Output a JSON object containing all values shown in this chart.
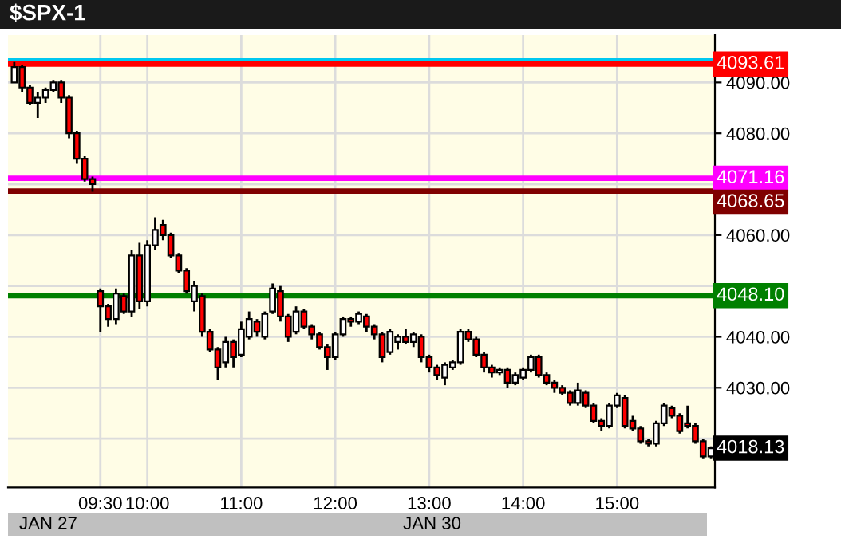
{
  "chart_data": {
    "type": "candlestick",
    "title": "$SPX-1",
    "categories": [
      null,
      null,
      null,
      null,
      null,
      null,
      null,
      null,
      null,
      null,
      null,
      "09:30",
      null,
      null,
      null,
      null,
      null,
      "10:00",
      null,
      null,
      null,
      null,
      null,
      null,
      null,
      null,
      null,
      null,
      null,
      "11:00",
      null,
      null,
      null,
      null,
      null,
      null,
      null,
      null,
      null,
      null,
      null,
      "12:00",
      null,
      null,
      null,
      null,
      null,
      null,
      null,
      null,
      null,
      null,
      null,
      "13:00",
      null,
      null,
      null,
      null,
      null,
      null,
      null,
      null,
      null,
      null,
      null,
      "14:00",
      null,
      null,
      null,
      null,
      null,
      null,
      null,
      null,
      null,
      null,
      null,
      "15:00",
      null,
      null,
      null,
      null,
      null,
      null,
      null,
      null,
      null,
      null,
      null,
      null
    ],
    "ohlc": [
      [
        4090,
        4094,
        4090,
        4093
      ],
      [
        4093,
        4093.5,
        4088,
        4089
      ],
      [
        4089,
        4089.5,
        4085.5,
        4086
      ],
      [
        4086,
        4088,
        4083,
        4087
      ],
      [
        4087,
        4089,
        4086,
        4088.5
      ],
      [
        4088.5,
        4090.5,
        4088,
        4090
      ],
      [
        4090,
        4090.5,
        4086,
        4087
      ],
      [
        4087,
        4087.5,
        4079,
        4080
      ],
      [
        4080,
        4080.5,
        4074,
        4075
      ],
      [
        4075,
        4075.5,
        4070.5,
        4071
      ],
      [
        4071,
        4071.5,
        4068.5,
        4070
      ],
      [
        4049,
        4049.5,
        4041,
        4046
      ],
      [
        4046,
        4046.5,
        4042,
        4043.5
      ],
      [
        4043.5,
        4049.5,
        4042.5,
        4048.5
      ],
      [
        4048,
        4048.5,
        4044.5,
        4045
      ],
      [
        4045,
        4057,
        4044,
        4056
      ],
      [
        4056,
        4058.5,
        4045.5,
        4047
      ],
      [
        4047,
        4059,
        4046,
        4058
      ],
      [
        4058,
        4063.5,
        4057,
        4061
      ],
      [
        4062,
        4063,
        4059,
        4060
      ],
      [
        4060,
        4060.5,
        4055.5,
        4056
      ],
      [
        4056,
        4056.5,
        4052.5,
        4053
      ],
      [
        4053,
        4053.5,
        4048.5,
        4049
      ],
      [
        4047,
        4051,
        4045,
        4050
      ],
      [
        4048,
        4048.5,
        4040,
        4041
      ],
      [
        4041,
        4041.5,
        4037,
        4037.5
      ],
      [
        4037.5,
        4038,
        4031.5,
        4034
      ],
      [
        4035,
        4040,
        4034,
        4039
      ],
      [
        4039,
        4039.5,
        4034,
        4036
      ],
      [
        4036.5,
        4043,
        4036,
        4041.5
      ],
      [
        4040,
        4045,
        4039.5,
        4043.5
      ],
      [
        4043,
        4043.5,
        4040,
        4041
      ],
      [
        4040,
        4045,
        4039.5,
        4044.5
      ],
      [
        4045,
        4050.5,
        4044.5,
        4049.5
      ],
      [
        4049,
        4050,
        4043,
        4044
      ],
      [
        4044,
        4044.5,
        4039,
        4040
      ],
      [
        4041,
        4046,
        4040.5,
        4045
      ],
      [
        4045,
        4045.5,
        4041.5,
        4042
      ],
      [
        4042,
        4042.5,
        4039.5,
        4040.5
      ],
      [
        4040.5,
        4041,
        4037.5,
        4038
      ],
      [
        4038,
        4038.5,
        4033.5,
        4036
      ],
      [
        4036,
        4041,
        4035.5,
        4040.5
      ],
      [
        4040.5,
        4044,
        4040,
        4043.5
      ],
      [
        4043.5,
        4044,
        4042,
        4043
      ],
      [
        4043,
        4045,
        4042.5,
        4044.5
      ],
      [
        4044,
        4044.5,
        4041,
        4042
      ],
      [
        4042,
        4042.5,
        4039.5,
        4040.5
      ],
      [
        4040.5,
        4041,
        4035,
        4036
      ],
      [
        4037,
        4041.5,
        4036.5,
        4041
      ],
      [
        4039,
        4040.5,
        4037.5,
        4040
      ],
      [
        4040,
        4041.5,
        4038.5,
        4039
      ],
      [
        4039,
        4041,
        4038,
        4040.5
      ],
      [
        4040,
        4040.5,
        4035,
        4036
      ],
      [
        4036,
        4036.5,
        4033,
        4034
      ],
      [
        4034,
        4034.5,
        4031.5,
        4032.5
      ],
      [
        4032,
        4035,
        4030.5,
        4034.5
      ],
      [
        4034,
        4035.5,
        4033.5,
        4035
      ],
      [
        4035,
        4041.5,
        4034.5,
        4041
      ],
      [
        4041,
        4041.5,
        4039,
        4039.5
      ],
      [
        4039.5,
        4040,
        4036,
        4036.5
      ],
      [
        4036.5,
        4037,
        4033,
        4034
      ],
      [
        4034,
        4034.5,
        4032,
        4033
      ],
      [
        4033,
        4034,
        4032.5,
        4033.5
      ],
      [
        4033.5,
        4034,
        4030,
        4031
      ],
      [
        4031,
        4033,
        4030.5,
        4032.5
      ],
      [
        4032,
        4034,
        4031.5,
        4033.5
      ],
      [
        4033.5,
        4036.5,
        4033,
        4036
      ],
      [
        4036,
        4036.5,
        4032,
        4032.5
      ],
      [
        4032.5,
        4033,
        4030.5,
        4031
      ],
      [
        4031,
        4031.5,
        4029,
        4030
      ],
      [
        4030,
        4030.5,
        4028.5,
        4029
      ],
      [
        4029,
        4029.5,
        4026.5,
        4027
      ],
      [
        4027,
        4031,
        4026.5,
        4029.5
      ],
      [
        4029,
        4029.5,
        4026,
        4026.5
      ],
      [
        4026.5,
        4027,
        4023,
        4023.5
      ],
      [
        4023.5,
        4024,
        4021.5,
        4022.5
      ],
      [
        4022.5,
        4027,
        4022,
        4026.5
      ],
      [
        4026.5,
        4029,
        4026,
        4028.5
      ],
      [
        4028,
        4028.5,
        4022,
        4022.5
      ],
      [
        4023.5,
        4024.5,
        4021.5,
        4022
      ],
      [
        4022,
        4022.5,
        4019,
        4019.5
      ],
      [
        4019.5,
        4020,
        4018.5,
        4019
      ],
      [
        4019,
        4023.5,
        4018.5,
        4023
      ],
      [
        4023,
        4027,
        4022.5,
        4026.5
      ],
      [
        4026,
        4026.5,
        4024,
        4024.5
      ],
      [
        4024.5,
        4025,
        4021,
        4021.5
      ],
      [
        4023,
        4026.5,
        4022,
        4022.5
      ],
      [
        4022.5,
        4023,
        4019,
        4019.5
      ],
      [
        4019.5,
        4020,
        4016,
        4016.5
      ],
      [
        4016.5,
        4018.5,
        4016,
        4018.13
      ]
    ],
    "ylim": [
      4010.4,
      4099.3
    ],
    "yticks": [
      {
        "value": 4020,
        "label": null
      },
      {
        "value": 4030,
        "label": "4030.00"
      },
      {
        "value": 4040,
        "label": "4040.00"
      },
      {
        "value": 4050,
        "label": null
      },
      {
        "value": 4060,
        "label": "4060.00"
      },
      {
        "value": 4070,
        "label": null
      },
      {
        "value": 4080,
        "label": "4080.00"
      },
      {
        "value": 4090,
        "label": "4090.00"
      }
    ],
    "ref_lines": [
      {
        "axis": "y",
        "value": 4094.2,
        "label": null,
        "color": "#00c8f0"
      },
      {
        "axis": "y",
        "value": 4093.61,
        "label": "4093.61",
        "color": "#ff0000"
      },
      {
        "axis": "y",
        "value": 4071.16,
        "label": "4071.16",
        "color": "#ff00ff"
      },
      {
        "axis": "y",
        "value": 4068.65,
        "label": "4068.65",
        "color": "#800000"
      },
      {
        "axis": "y",
        "value": 4048.1,
        "label": "4048.10",
        "color": "#008000"
      }
    ],
    "annotations": [
      "4018.13",
      "JAN 27",
      "JAN 30"
    ],
    "grid": true
  }
}
